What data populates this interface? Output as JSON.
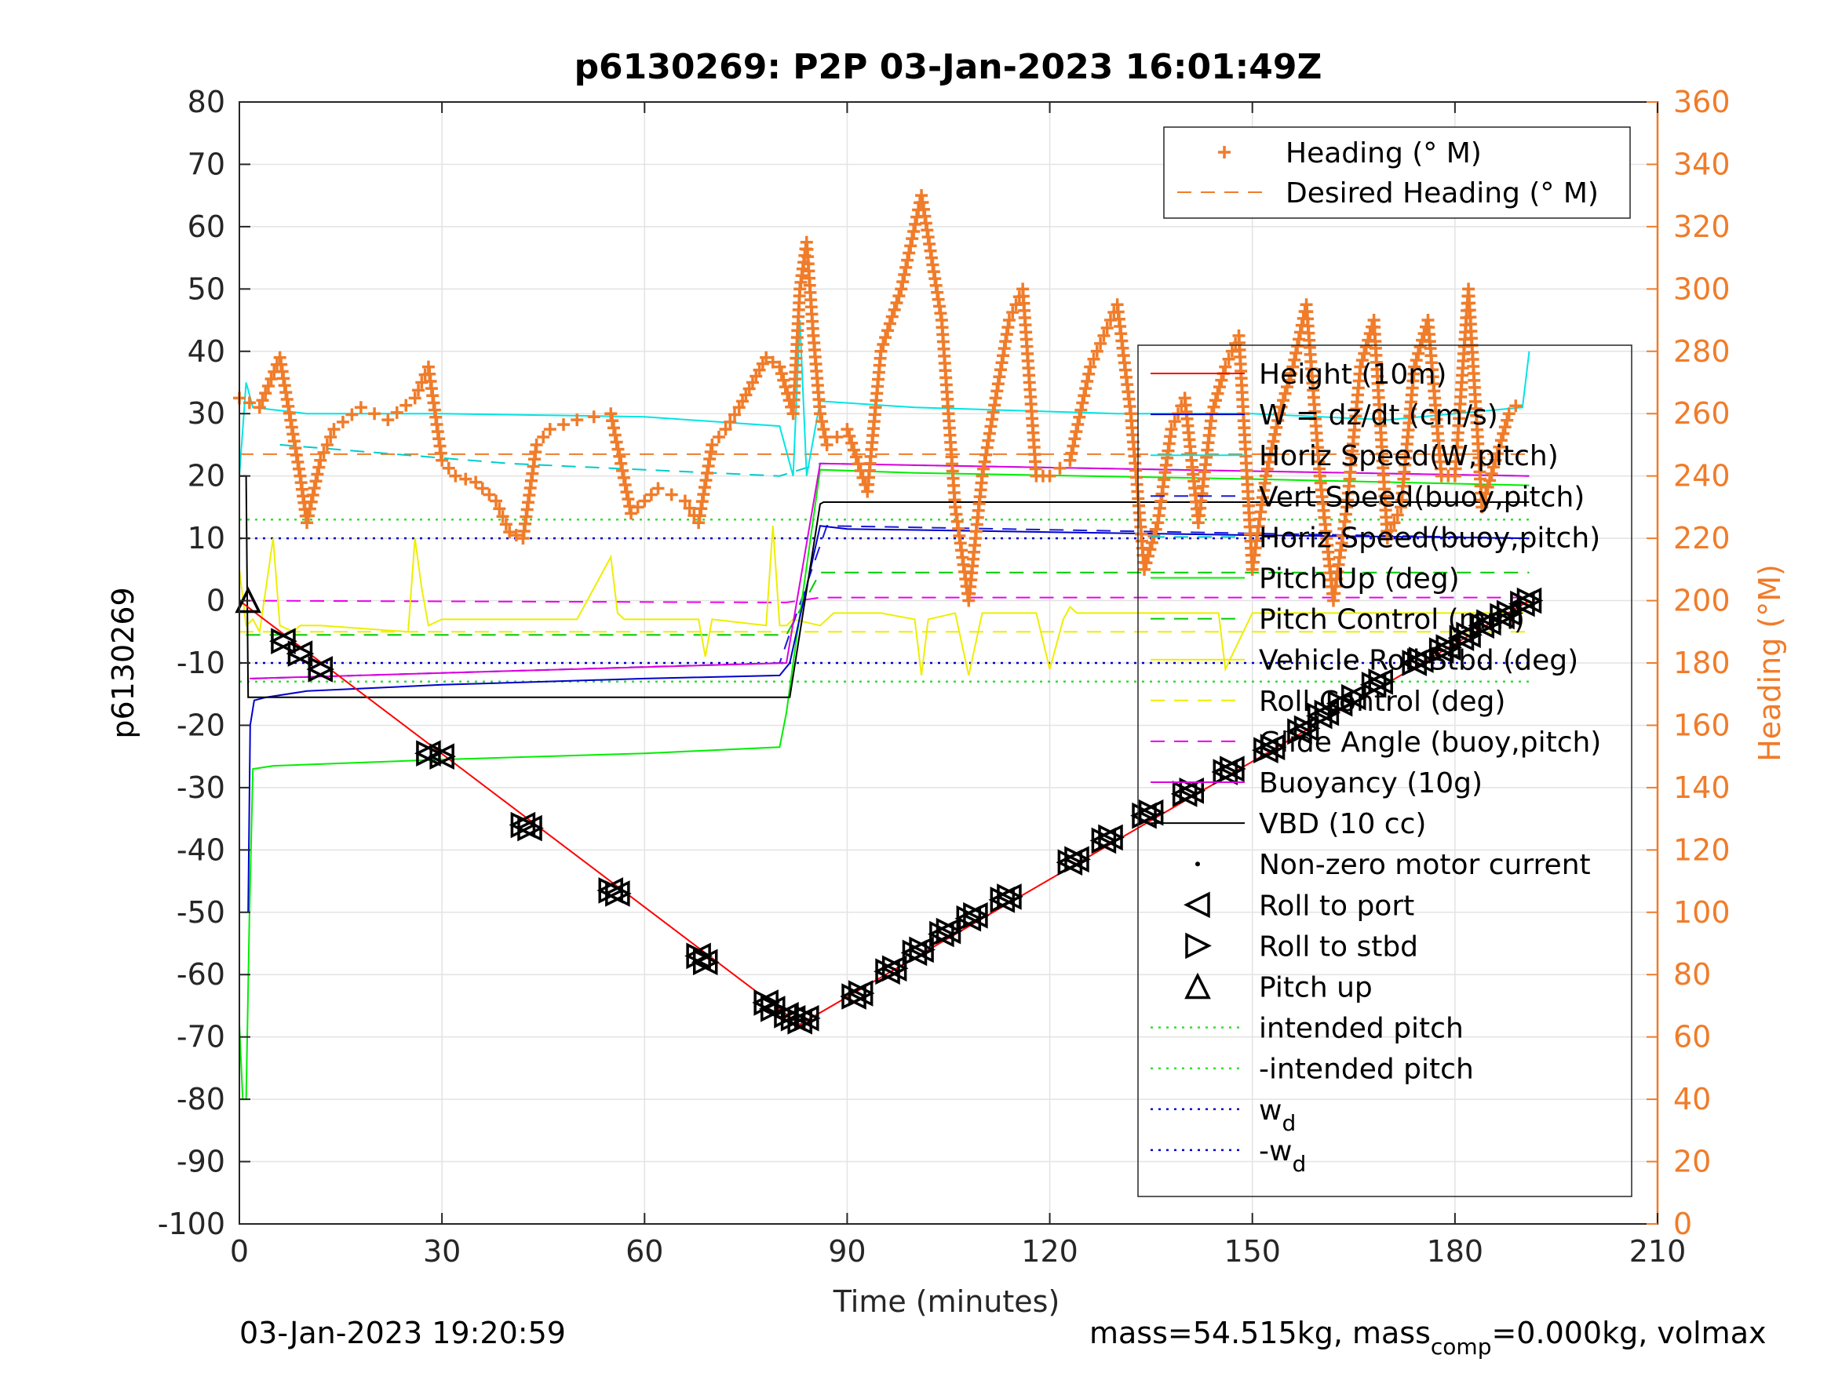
{
  "chart_data": {
    "type": "line",
    "title": "p6130269: P2P 03-Jan-2023 16:01:49Z",
    "xlabel": "Time (minutes)",
    "ylabel_left": "p6130269",
    "ylabel_right": "Heading (°M)",
    "xlim": [
      0,
      210
    ],
    "ylim_left": [
      -100,
      80
    ],
    "ylim_right": [
      0,
      360
    ],
    "xticks": [
      "0",
      "30",
      "60",
      "90",
      "120",
      "150",
      "180",
      "210"
    ],
    "yticks_left": [
      "80",
      "70",
      "60",
      "50",
      "40",
      "30",
      "20",
      "10",
      "0",
      "-10",
      "-20",
      "-30",
      "-40",
      "-50",
      "-60",
      "-70",
      "-80",
      "-90",
      "-100"
    ],
    "yticks_right": [
      "360",
      "340",
      "320",
      "300",
      "280",
      "260",
      "240",
      "220",
      "200",
      "180",
      "160",
      "140",
      "120",
      "100",
      "80",
      "60",
      "40",
      "20",
      "0"
    ],
    "grid": true,
    "footer_left": "03-Jan-2023 19:20:59",
    "footer_right": {
      "pre": "mass=54.515kg, mass",
      "sub": "comp",
      "post": "=0.000kg, volmax"
    },
    "colors": {
      "heading": "#f07c2a",
      "height": "#ff0000",
      "w": "#0000cc",
      "horiz_w": "#00e5e5",
      "vert_buoy": "#1a1adb",
      "horiz_buoy": "#00cccc",
      "pitch_up": "#00ee00",
      "pitch_control": "#00cc00",
      "roll": "#ffff00",
      "roll_control": "#ffee00",
      "glide": "#ee00ee",
      "buoyancy": "#dd00dd",
      "vbd": "#000000",
      "intended": "#33dd33",
      "wd": "#0000cc"
    },
    "legend_top": [
      {
        "label": "Heading (° M)",
        "style": "plus",
        "color": "#f07c2a"
      },
      {
        "label": "Desired Heading (° M)",
        "style": "dash",
        "color": "#f07c2a"
      }
    ],
    "legend_main": [
      {
        "label": "Height (10m)",
        "style": "solid",
        "color": "#ff0000"
      },
      {
        "label": "W = dz/dt (cm/s)",
        "style": "solid",
        "color": "#0000cc"
      },
      {
        "label": "Horiz Speed(W,pitch)",
        "style": "solid",
        "color": "#00e5e5"
      },
      {
        "label": "Vert Speed(buoy,pitch)",
        "style": "dash",
        "color": "#1a1adb"
      },
      {
        "label": "Horiz Speed(buoy,pitch)",
        "style": "dash",
        "color": "#00cccc"
      },
      {
        "label": "Pitch Up (deg)",
        "style": "solid",
        "color": "#00ee00"
      },
      {
        "label": "Pitch Control (mm)",
        "style": "dash",
        "color": "#00cc00"
      },
      {
        "label": "Vehicle Roll Stbd (deg)",
        "style": "solid",
        "color": "#eeee00"
      },
      {
        "label": "Roll Control (deg)",
        "style": "dash",
        "color": "#eeee00"
      },
      {
        "label": "Glide Angle (buoy,pitch)",
        "style": "dash",
        "color": "#ee00ee"
      },
      {
        "label": "Buoyancy (10g)",
        "style": "solid",
        "color": "#dd00dd"
      },
      {
        "label": "VBD (10 cc)",
        "style": "solid",
        "color": "#000000"
      },
      {
        "label": "Non-zero motor current",
        "style": "dot",
        "color": "#000000"
      },
      {
        "label": "Roll to port",
        "style": "tri-left",
        "color": "#000000"
      },
      {
        "label": "Roll to stbd",
        "style": "tri-right",
        "color": "#000000"
      },
      {
        "label": "Pitch up",
        "style": "tri-up",
        "color": "#000000"
      },
      {
        "label": "intended pitch",
        "style": "dotted",
        "color": "#33dd33"
      },
      {
        "label": "-intended pitch",
        "style": "dotted",
        "color": "#33dd33"
      },
      {
        "label": "w",
        "sub": "d",
        "style": "dotted",
        "color": "#0000cc"
      },
      {
        "label": "-w",
        "sub": "d",
        "style": "dotted",
        "color": "#0000cc"
      }
    ],
    "series": [
      {
        "name": "Height (10m)",
        "color": "#ff0000",
        "style": "solid",
        "axis": "left",
        "x": [
          0,
          83,
          191
        ],
        "y": [
          0,
          -68,
          0
        ]
      },
      {
        "name": "VBD (10 cc)",
        "color": "#000000",
        "style": "solid",
        "axis": "left",
        "x": [
          0,
          1,
          1.3,
          81,
          81.5,
          86,
          86.5,
          191
        ],
        "y": [
          20,
          20,
          -15.5,
          -15.5,
          -15.5,
          15.5,
          15.8,
          15.8
        ]
      },
      {
        "name": "Buoyancy (10g)",
        "color": "#dd00dd",
        "style": "solid",
        "axis": "left",
        "x": [
          1.5,
          81,
          86,
          191
        ],
        "y": [
          -12.5,
          -10,
          22,
          20
        ]
      },
      {
        "name": "Glide Angle (buoy,pitch)",
        "color": "#ee00ee",
        "style": "dash",
        "axis": "left",
        "x": [
          0,
          81,
          86,
          191
        ],
        "y": [
          0,
          -0.3,
          0.5,
          0.5
        ]
      },
      {
        "name": "Horiz Speed(W,pitch)",
        "color": "#00e5e5",
        "style": "solid",
        "axis": "left",
        "x": [
          0,
          1,
          2,
          10,
          30,
          60,
          80,
          82,
          83,
          84,
          86,
          100,
          130,
          150,
          170,
          190,
          191
        ],
        "y": [
          20,
          35,
          31,
          30,
          30,
          29.5,
          28,
          20,
          45,
          20,
          32,
          31,
          30,
          30,
          29,
          31,
          40
        ]
      },
      {
        "name": "Horiz Speed(buoy,pitch)",
        "color": "#00cccc",
        "style": "dash",
        "axis": "left",
        "x": [
          6,
          40,
          80,
          86,
          191
        ],
        "y": [
          25,
          22,
          20,
          22,
          20
        ]
      },
      {
        "name": "Vert Speed(buoy,pitch)",
        "color": "#1a1adb",
        "style": "dash",
        "axis": "left",
        "x": [
          2,
          80,
          87,
          191
        ],
        "y": [
          -12.5,
          -10,
          12,
          10
        ]
      },
      {
        "name": "W = dz/dt (cm/s)",
        "color": "#0000cc",
        "style": "solid",
        "axis": "left",
        "x": [
          1.3,
          1.6,
          2.2,
          4,
          10,
          30,
          60,
          80,
          81.5,
          86,
          90,
          120,
          150,
          191
        ],
        "y": [
          -50,
          -20,
          -16,
          -15.5,
          -14.5,
          -13.5,
          -12.5,
          -12,
          -10,
          12,
          11.5,
          11,
          10.5,
          10
        ]
      },
      {
        "name": "Pitch Up (deg)",
        "color": "#00ee00",
        "style": "solid",
        "axis": "left",
        "x": [
          0,
          0.5,
          1,
          1.5,
          2,
          5,
          30,
          60,
          80,
          81,
          82,
          86,
          100,
          150,
          191
        ],
        "y": [
          -68,
          -80,
          -80,
          -50,
          -27,
          -26.5,
          -25.5,
          -24.5,
          -23.5,
          -18,
          -10,
          21,
          20.5,
          19.5,
          18.5
        ]
      },
      {
        "name": "Pitch Control (mm)",
        "color": "#00cc00",
        "style": "dash",
        "axis": "left",
        "x": [
          1,
          81,
          86,
          191
        ],
        "y": [
          -5.5,
          -5.5,
          4.5,
          4.5
        ]
      },
      {
        "name": "Vehicle Roll Stbd (deg)",
        "color": "#eeee00",
        "style": "solid",
        "axis": "left",
        "x": [
          0,
          1,
          2,
          3,
          5,
          6,
          8,
          9,
          12,
          25,
          26,
          27,
          28,
          30,
          40,
          50,
          55,
          56,
          57,
          60,
          68,
          69,
          70,
          78,
          79,
          80,
          81,
          82,
          86,
          88,
          95,
          100,
          101,
          102,
          106,
          108,
          110,
          118,
          120,
          122,
          123,
          124,
          130,
          135,
          140,
          145,
          146,
          150,
          160,
          170,
          180,
          190,
          191
        ],
        "y": [
          5,
          -4,
          -3,
          -5,
          10,
          -4,
          -5,
          -4,
          -4,
          -5,
          10,
          2,
          -4,
          -3,
          -3,
          -3,
          7,
          -2,
          -3,
          -3,
          -3,
          -9,
          -3,
          -4,
          12,
          -4,
          -4,
          -3,
          -4,
          -2,
          -2,
          -3,
          -12,
          -3,
          -2,
          -12,
          -2,
          -2,
          -11,
          -3,
          -1,
          -2,
          -2,
          -2,
          -2,
          -2,
          -11,
          -2,
          -2,
          -2,
          -2,
          -2,
          0
        ]
      },
      {
        "name": "Roll Control (deg)",
        "color": "#eeee00",
        "style": "dash",
        "axis": "left",
        "x": [
          0,
          191
        ],
        "y": [
          -5,
          -5
        ]
      },
      {
        "name": "Desired Heading (° M)",
        "color": "#f07c2a",
        "style": "dash",
        "axis": "right",
        "x": [
          0,
          191
        ],
        "y": [
          247,
          247
        ]
      },
      {
        "name": "Heading (° M)",
        "color": "#f07c2a",
        "style": "plus",
        "axis": "right",
        "x": [
          0,
          3,
          6,
          9,
          10,
          12,
          14,
          18,
          22,
          26,
          28,
          30,
          32,
          35,
          38,
          40,
          42,
          44,
          46,
          50,
          55,
          58,
          62,
          66,
          68,
          70,
          72,
          74,
          76,
          78,
          80,
          82,
          83,
          84,
          85,
          86,
          87,
          90,
          93,
          95,
          98,
          101,
          104,
          106,
          108,
          110,
          114,
          116,
          118,
          120,
          123,
          126,
          128,
          130,
          132,
          134,
          136,
          138,
          140,
          142,
          144,
          146,
          148,
          150,
          152,
          154,
          156,
          158,
          160,
          162,
          164,
          166,
          168,
          170,
          172,
          174,
          176,
          178,
          180,
          182,
          184,
          186,
          188,
          190
        ],
        "y": [
          265,
          262,
          278,
          240,
          225,
          245,
          255,
          262,
          258,
          265,
          275,
          245,
          240,
          238,
          232,
          222,
          220,
          250,
          255,
          258,
          260,
          228,
          236,
          232,
          225,
          250,
          255,
          262,
          270,
          278,
          275,
          260,
          300,
          315,
          285,
          260,
          250,
          255,
          235,
          280,
          300,
          330,
          290,
          230,
          200,
          240,
          290,
          300,
          240,
          240,
          245,
          275,
          285,
          295,
          260,
          210,
          225,
          255,
          265,
          225,
          260,
          275,
          285,
          210,
          240,
          260,
          275,
          295,
          240,
          200,
          230,
          275,
          290,
          220,
          230,
          275,
          290,
          240,
          240,
          300,
          230,
          245,
          260,
          265
        ]
      },
      {
        "name": "intended pitch",
        "color": "#33dd33",
        "style": "dotted",
        "axis": "left",
        "x": [
          0,
          191
        ],
        "y": [
          13,
          13
        ]
      },
      {
        "name": "-intended pitch",
        "color": "#33dd33",
        "style": "dotted",
        "axis": "left",
        "x": [
          0,
          191
        ],
        "y": [
          -13,
          -13
        ]
      },
      {
        "name": "w_d",
        "color": "#0000cc",
        "style": "dotted",
        "axis": "left",
        "x": [
          0,
          191
        ],
        "y": [
          10,
          10
        ]
      },
      {
        "name": "-w_d",
        "color": "#0000cc",
        "style": "dotted",
        "axis": "left",
        "x": [
          0,
          191
        ],
        "y": [
          -10,
          -10
        ]
      }
    ],
    "markers": {
      "roll_to_port": {
        "x": [
          6.5,
          9,
          12,
          28,
          30,
          42,
          43,
          55,
          56,
          68,
          69,
          78,
          79,
          81,
          82,
          83,
          84,
          91,
          92,
          96,
          97,
          100,
          101,
          104,
          105,
          108,
          109,
          113,
          114,
          123,
          124,
          128,
          129,
          134,
          135,
          140,
          141,
          146,
          147,
          152,
          153,
          157,
          158,
          160,
          161,
          163,
          165,
          168,
          169,
          174,
          175,
          178,
          179,
          181,
          182,
          184,
          185,
          187,
          188,
          190,
          191
        ],
        "y": [
          -6.5,
          -8.5,
          -11,
          -24.5,
          -25,
          -36,
          -36.5,
          -46.5,
          -47,
          -57,
          -58,
          -64.5,
          -65.5,
          -66.5,
          -67,
          -67.5,
          -67,
          -63.5,
          -63,
          -59.5,
          -59,
          -56.5,
          -56,
          -53.5,
          -53,
          -51,
          -50.5,
          -48,
          -47.5,
          -42,
          -41.5,
          -38.5,
          -38,
          -34.5,
          -34,
          -31,
          -30.5,
          -27.5,
          -27,
          -24,
          -23.5,
          -21,
          -20.5,
          -18.5,
          -18,
          -16.5,
          -15.5,
          -13.5,
          -13,
          -10,
          -9.5,
          -8,
          -7.5,
          -6,
          -5.5,
          -4,
          -3.5,
          -2.5,
          -2,
          -0.5,
          0
        ]
      },
      "pitch_up": {
        "x": [
          1.3
        ],
        "y": [
          0
        ]
      }
    }
  }
}
